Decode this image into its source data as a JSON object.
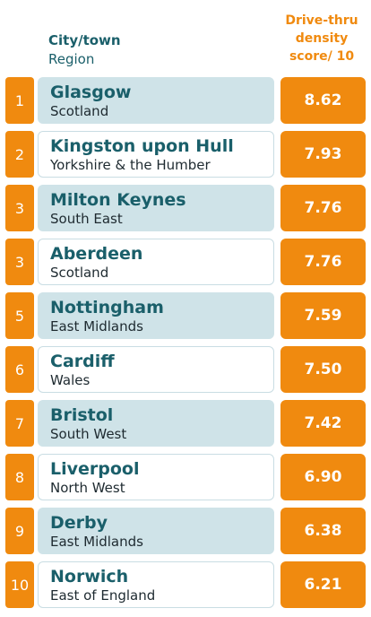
{
  "header": {
    "city_label": "City/town",
    "region_label": "Region",
    "score_label_lines": [
      "Drive-thru",
      "density",
      "score/ 10"
    ]
  },
  "colors": {
    "orange": "#f08a0f",
    "teal_text": "#1a5f6a",
    "row_highlight": "#cfe3e8"
  },
  "chart_data": {
    "type": "table",
    "columns": [
      "City/town",
      "Region",
      "Drive-thru density score/ 10"
    ],
    "rows": [
      {
        "rank": "1",
        "city": "Glasgow",
        "region": "Scotland",
        "score": "8.62",
        "score_value": 8.62
      },
      {
        "rank": "2",
        "city": "Kingston upon Hull",
        "region": "Yorkshire & the Humber",
        "score": "7.93",
        "score_value": 7.93
      },
      {
        "rank": "3",
        "city": "Milton Keynes",
        "region": "South East",
        "score": "7.76",
        "score_value": 7.76
      },
      {
        "rank": "3",
        "city": "Aberdeen",
        "region": "Scotland",
        "score": "7.76",
        "score_value": 7.76
      },
      {
        "rank": "5",
        "city": "Nottingham",
        "region": "East Midlands",
        "score": "7.59",
        "score_value": 7.59
      },
      {
        "rank": "6",
        "city": "Cardiff",
        "region": "Wales",
        "score": "7.50",
        "score_value": 7.5
      },
      {
        "rank": "7",
        "city": "Bristol",
        "region": "South West",
        "score": "7.42",
        "score_value": 7.42
      },
      {
        "rank": "8",
        "city": "Liverpool",
        "region": "North West",
        "score": "6.90",
        "score_value": 6.9
      },
      {
        "rank": "9",
        "city": "Derby",
        "region": "East Midlands",
        "score": "6.38",
        "score_value": 6.38
      },
      {
        "rank": "10",
        "city": "Norwich",
        "region": "East of England",
        "score": "6.21",
        "score_value": 6.21
      }
    ]
  }
}
